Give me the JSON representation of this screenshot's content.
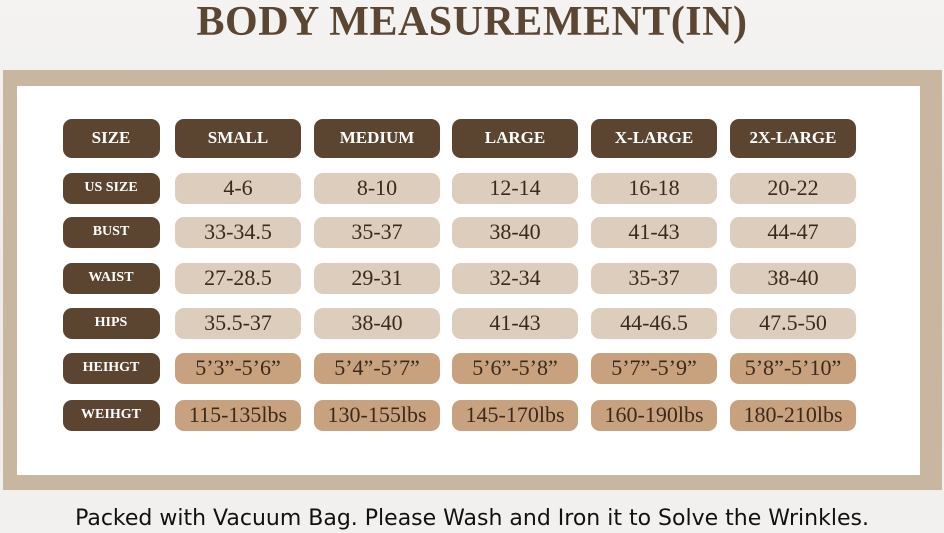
{
  "title": "BODY MEASUREMENT(IN)",
  "table": {
    "header": [
      "SIZE",
      "SMALL",
      "MEDIUM",
      "LARGE",
      "X-LARGE",
      "2X-LARGE"
    ],
    "rows": [
      [
        "US SIZE",
        "4-6",
        "8-10",
        "12-14",
        "16-18",
        "20-22"
      ],
      [
        "BUST",
        "33-34.5",
        "35-37",
        "38-40",
        "41-43",
        "44-47"
      ],
      [
        "WAIST",
        "27-28.5",
        "29-31",
        "32-34",
        "35-37",
        "38-40"
      ],
      [
        "HIPS",
        "35.5-37",
        "38-40",
        "41-43",
        "44-46.5",
        "47.5-50"
      ],
      [
        "HEIHGT",
        "5’3”-5’6”",
        "5’4”-5’7”",
        "5’6”-5’8”",
        "5’7”-5’9”",
        "5’8”-5’10”"
      ],
      [
        "WEIHGT",
        "115-135lbs",
        "130-155lbs",
        "145-170lbs",
        "160-190lbs",
        "180-210lbs"
      ]
    ]
  },
  "footer": "Packed with Vacuum Bag. Please Wash and Iron it to Solve the Wrinkles."
}
